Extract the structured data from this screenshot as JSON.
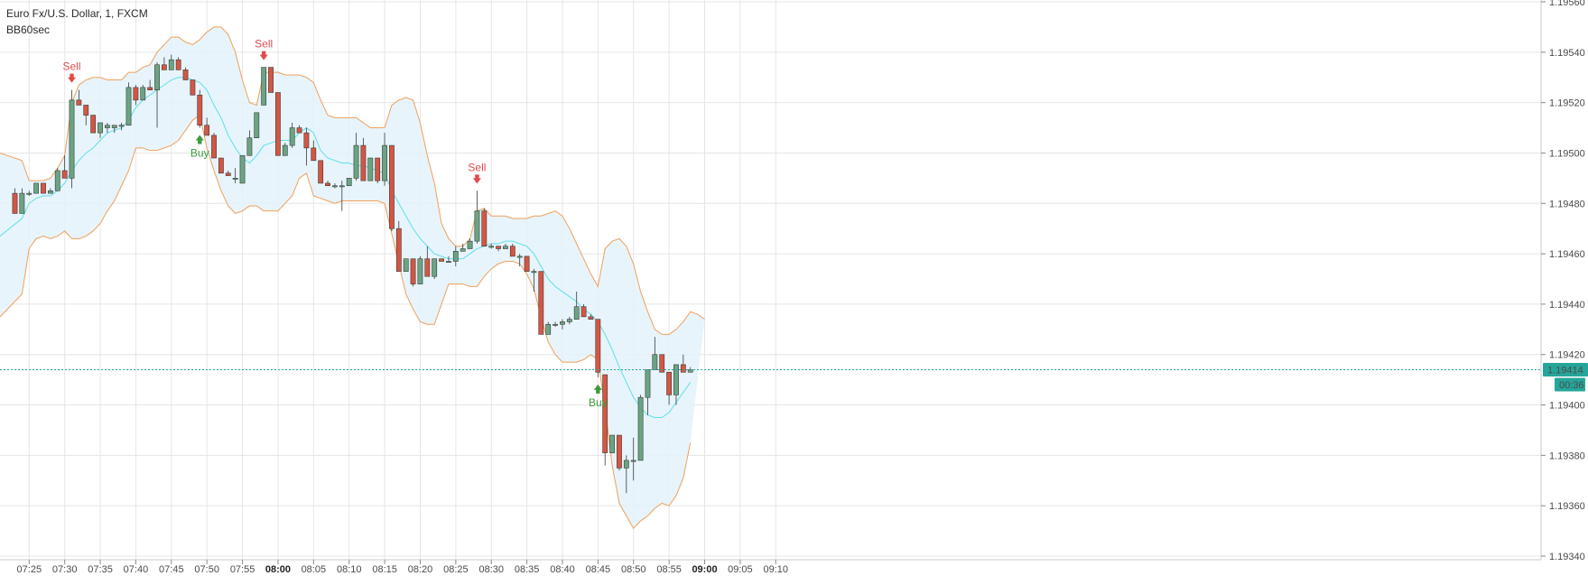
{
  "chart_title": "Euro Fx/U.S. Dollar, 1, FXCM",
  "indicator_label": "BB60sec",
  "chart_data": {
    "type": "candlestick",
    "y_axis": {
      "range": [
        1.1934,
        1.1956
      ],
      "ticks": [
        "1.19340",
        "1.19360",
        "1.19380",
        "1.19400",
        "1.19420",
        "1.19440",
        "1.19460",
        "1.19480",
        "1.19500",
        "1.19520",
        "1.19540",
        "1.19560"
      ]
    },
    "x_axis": {
      "tick_labels": [
        "07:25",
        "07:30",
        "07:35",
        "07:40",
        "07:45",
        "07:50",
        "07:55",
        "08:00",
        "08:05",
        "08:10",
        "08:15",
        "08:20",
        "08:25",
        "08:30",
        "08:35",
        "08:40",
        "08:45",
        "08:50",
        "08:55",
        "09:00",
        "09:05",
        "09:10"
      ],
      "bold_labels": [
        "08:00",
        "09:00"
      ]
    },
    "current_price": "1.19414",
    "countdown": "00:36",
    "colors": {
      "up": "#6aa583",
      "down": "#d55643",
      "band": "#f0a05a",
      "band_fill": "#e3f2fa",
      "basis": "#5ee0e8",
      "sell": "#e24b4b",
      "buy": "#3b9a3b",
      "price_label": "#26a69a"
    },
    "candles": [
      [
        1.19484,
        1.19486,
        1.19476,
        1.19476
      ],
      [
        1.19476,
        1.19486,
        1.19476,
        1.19484
      ],
      [
        1.19484,
        1.19485,
        1.19483,
        1.19484
      ],
      [
        1.19484,
        1.19488,
        1.19484,
        1.19488
      ],
      [
        1.19488,
        1.19488,
        1.19484,
        1.19484
      ],
      [
        1.19484,
        1.19486,
        1.19484,
        1.19485
      ],
      [
        1.19485,
        1.19494,
        1.19485,
        1.19493
      ],
      [
        1.19493,
        1.19499,
        1.1949,
        1.1949
      ],
      [
        1.1949,
        1.19525,
        1.19486,
        1.19521
      ],
      [
        1.19521,
        1.19525,
        1.19519,
        1.19519
      ],
      [
        1.19519,
        1.19519,
        1.19511,
        1.19515
      ],
      [
        1.19515,
        1.19515,
        1.19508,
        1.19508
      ],
      [
        1.19508,
        1.19512,
        1.19506,
        1.19512
      ],
      [
        1.1951,
        1.19512,
        1.19508,
        1.19511
      ],
      [
        1.1951,
        1.19511,
        1.19508,
        1.19511
      ],
      [
        1.19511,
        1.19512,
        1.19509,
        1.19511
      ],
      [
        1.19511,
        1.19528,
        1.19511,
        1.19526
      ],
      [
        1.19526,
        1.19527,
        1.19519,
        1.19521
      ],
      [
        1.19521,
        1.19527,
        1.19521,
        1.19526
      ],
      [
        1.19526,
        1.19529,
        1.19525,
        1.19525
      ],
      [
        1.19525,
        1.19536,
        1.1951,
        1.19535
      ],
      [
        1.19535,
        1.19538,
        1.19533,
        1.19533
      ],
      [
        1.19533,
        1.19539,
        1.19533,
        1.19537
      ],
      [
        1.19537,
        1.19538,
        1.19533,
        1.19533
      ],
      [
        1.19533,
        1.19534,
        1.19529,
        1.19529
      ],
      [
        1.19529,
        1.19529,
        1.19523,
        1.19523
      ],
      [
        1.19523,
        1.19525,
        1.1951,
        1.19511
      ],
      [
        1.19511,
        1.19514,
        1.19507,
        1.19507
      ],
      [
        1.19507,
        1.19508,
        1.19498,
        1.19498
      ],
      [
        1.19498,
        1.19498,
        1.19492,
        1.19492
      ],
      [
        1.19492,
        1.19493,
        1.19491,
        1.19491
      ],
      [
        1.1949,
        1.19494,
        1.19488,
        1.1949
      ],
      [
        1.19488,
        1.19499,
        1.19488,
        1.19499
      ],
      [
        1.19499,
        1.19509,
        1.19499,
        1.19506
      ],
      [
        1.19506,
        1.19516,
        1.19506,
        1.19516
      ],
      [
        1.19519,
        1.19534,
        1.19519,
        1.19534
      ],
      [
        1.19534,
        1.19534,
        1.19524,
        1.19524
      ],
      [
        1.19524,
        1.19524,
        1.19499,
        1.19499
      ],
      [
        1.19499,
        1.19504,
        1.19499,
        1.19503
      ],
      [
        1.19503,
        1.19512,
        1.19502,
        1.1951
      ],
      [
        1.1951,
        1.19511,
        1.19508,
        1.19508
      ],
      [
        1.19508,
        1.1951,
        1.19495,
        1.19502
      ],
      [
        1.19502,
        1.19505,
        1.19497,
        1.19497
      ],
      [
        1.19497,
        1.19497,
        1.19488,
        1.19488
      ],
      [
        1.19488,
        1.19489,
        1.19487,
        1.19487
      ],
      [
        1.19487,
        1.19488,
        1.19486,
        1.19487
      ],
      [
        1.19487,
        1.19489,
        1.19477,
        1.19487
      ],
      [
        1.19487,
        1.1949,
        1.19487,
        1.1949
      ],
      [
        1.1949,
        1.19508,
        1.19489,
        1.19503
      ],
      [
        1.19503,
        1.19506,
        1.19489,
        1.19489
      ],
      [
        1.19489,
        1.19498,
        1.19489,
        1.19498
      ],
      [
        1.19498,
        1.19498,
        1.19488,
        1.19489
      ],
      [
        1.19489,
        1.19508,
        1.19487,
        1.19503
      ],
      [
        1.19503,
        1.19503,
        1.19469,
        1.1947
      ],
      [
        1.1947,
        1.19473,
        1.19453,
        1.19453
      ],
      [
        1.19453,
        1.19458,
        1.19453,
        1.19458
      ],
      [
        1.19458,
        1.19458,
        1.19447,
        1.19448
      ],
      [
        1.19448,
        1.19459,
        1.19448,
        1.19458
      ],
      [
        1.19458,
        1.19463,
        1.19451,
        1.19451
      ],
      [
        1.19451,
        1.19458,
        1.1945,
        1.19458
      ],
      [
        1.19458,
        1.19458,
        1.19457,
        1.19457
      ],
      [
        1.19457,
        1.19459,
        1.19457,
        1.19457
      ],
      [
        1.19457,
        1.19463,
        1.19455,
        1.19461
      ],
      [
        1.19461,
        1.19464,
        1.19461,
        1.19462
      ],
      [
        1.19462,
        1.19466,
        1.19462,
        1.19465
      ],
      [
        1.19465,
        1.19485,
        1.19464,
        1.19477
      ],
      [
        1.19477,
        1.19478,
        1.19463,
        1.19463
      ],
      [
        1.19463,
        1.19464,
        1.19462,
        1.19463
      ],
      [
        1.19463,
        1.19463,
        1.19461,
        1.19462
      ],
      [
        1.19462,
        1.19464,
        1.19462,
        1.19463
      ],
      [
        1.19463,
        1.19464,
        1.19459,
        1.19459
      ],
      [
        1.19459,
        1.1946,
        1.19455,
        1.19459
      ],
      [
        1.19459,
        1.19459,
        1.19453,
        1.19453
      ],
      [
        1.19453,
        1.19454,
        1.19445,
        1.19453
      ],
      [
        1.19453,
        1.19453,
        1.19428,
        1.19428
      ],
      [
        1.19428,
        1.19433,
        1.19428,
        1.19432
      ],
      [
        1.19432,
        1.19433,
        1.19431,
        1.19432
      ],
      [
        1.19432,
        1.19434,
        1.1943,
        1.19433
      ],
      [
        1.19433,
        1.19435,
        1.19432,
        1.19434
      ],
      [
        1.19434,
        1.19445,
        1.19434,
        1.19439
      ],
      [
        1.19439,
        1.1944,
        1.19435,
        1.19435
      ],
      [
        1.19435,
        1.19436,
        1.19434,
        1.19434
      ],
      [
        1.19434,
        1.19434,
        1.19411,
        1.19413
      ],
      [
        1.19412,
        1.19412,
        1.19376,
        1.19381
      ],
      [
        1.19381,
        1.19388,
        1.19381,
        1.19388
      ],
      [
        1.19388,
        1.19388,
        1.19374,
        1.19375
      ],
      [
        1.19375,
        1.1938,
        1.19365,
        1.19378
      ],
      [
        1.19378,
        1.19387,
        1.1937,
        1.19378
      ],
      [
        1.19378,
        1.19404,
        1.19378,
        1.19403
      ],
      [
        1.19403,
        1.19414,
        1.19396,
        1.19414
      ],
      [
        1.19414,
        1.19427,
        1.19414,
        1.1942
      ],
      [
        1.1942,
        1.1942,
        1.19413,
        1.19413
      ],
      [
        1.19413,
        1.19413,
        1.194,
        1.19404
      ],
      [
        1.19404,
        1.19416,
        1.194,
        1.19416
      ],
      [
        1.19416,
        1.1942,
        1.19413,
        1.19413
      ],
      [
        1.19413,
        1.19415,
        1.19413,
        1.19414
      ]
    ],
    "upper_band": [
      1.195,
      1.19497,
      1.19489,
      1.19489,
      1.19489,
      1.1949,
      1.19494,
      1.19499,
      1.1952,
      1.19527,
      1.19529,
      1.1953,
      1.1953,
      1.19529,
      1.19529,
      1.19529,
      1.19532,
      1.19532,
      1.19534,
      1.19535,
      1.1954,
      1.19543,
      1.19546,
      1.19546,
      1.19544,
      1.19543,
      1.19545,
      1.19548,
      1.1955,
      1.1955,
      1.19547,
      1.1954,
      1.19529,
      1.1952,
      1.19519,
      1.19532,
      1.19532,
      1.19532,
      1.19531,
      1.19531,
      1.19531,
      1.1953,
      1.19528,
      1.19521,
      1.19515,
      1.19514,
      1.19514,
      1.19514,
      1.19514,
      1.19512,
      1.1951,
      1.1951,
      1.1951,
      1.19519,
      1.19521,
      1.19522,
      1.19521,
      1.19512,
      1.19499,
      1.19488,
      1.19472,
      1.19466,
      1.19463,
      1.19463,
      1.19466,
      1.19477,
      1.19478,
      1.19475,
      1.19475,
      1.19475,
      1.19474,
      1.19474,
      1.19474,
      1.19475,
      1.19475,
      1.19476,
      1.19477,
      1.19475,
      1.1947,
      1.19464,
      1.19458,
      1.19452,
      1.19447,
      1.19462,
      1.19465,
      1.19466,
      1.19463,
      1.19456,
      1.19445,
      1.19437,
      1.1943,
      1.19428,
      1.19428,
      1.1943,
      1.19433,
      1.19437,
      1.19436,
      1.19434
    ],
    "lower_band": [
      1.19435,
      1.19444,
      1.19462,
      1.19466,
      1.19467,
      1.19466,
      1.19467,
      1.19469,
      1.19466,
      1.19466,
      1.19467,
      1.19469,
      1.19472,
      1.19477,
      1.19481,
      1.19487,
      1.19493,
      1.19502,
      1.19502,
      1.19501,
      1.19501,
      1.19502,
      1.19503,
      1.19505,
      1.19509,
      1.19513,
      1.19515,
      1.19502,
      1.19493,
      1.19485,
      1.19479,
      1.19476,
      1.19477,
      1.19479,
      1.19479,
      1.19477,
      1.19477,
      1.19477,
      1.1948,
      1.19483,
      1.1949,
      1.19492,
      1.19483,
      1.19482,
      1.19481,
      1.1948,
      1.19481,
      1.19481,
      1.19481,
      1.19481,
      1.19481,
      1.19481,
      1.1948,
      1.19468,
      1.19456,
      1.19444,
      1.19438,
      1.19433,
      1.19432,
      1.19432,
      1.1944,
      1.19448,
      1.19448,
      1.19448,
      1.19447,
      1.19447,
      1.19451,
      1.19454,
      1.19456,
      1.19457,
      1.19457,
      1.19456,
      1.19452,
      1.19446,
      1.19435,
      1.19425,
      1.1942,
      1.19417,
      1.19417,
      1.19417,
      1.19418,
      1.1942,
      1.19418,
      1.19399,
      1.19376,
      1.19361,
      1.19356,
      1.19351,
      1.19354,
      1.19356,
      1.19359,
      1.19361,
      1.1936,
      1.19364,
      1.19371,
      1.19385
    ],
    "basis": [
      1.19467,
      1.19474,
      1.1948,
      1.19482,
      1.19483,
      1.19483,
      1.19485,
      1.19488,
      1.19493,
      1.19497,
      1.195,
      1.19502,
      1.19505,
      1.19508,
      1.19509,
      1.1951,
      1.19513,
      1.19518,
      1.19521,
      1.19523,
      1.19525,
      1.19527,
      1.19529,
      1.1953,
      1.1953,
      1.19529,
      1.19528,
      1.19525,
      1.19519,
      1.19514,
      1.19507,
      1.19502,
      1.19498,
      1.19496,
      1.19499,
      1.19503,
      1.19504,
      1.19505,
      1.19505,
      1.19505,
      1.19508,
      1.1951,
      1.19508,
      1.19501,
      1.19498,
      1.19497,
      1.19496,
      1.19496,
      1.19495,
      1.19495,
      1.19494,
      1.19493,
      1.19492,
      1.19485,
      1.1948,
      1.19475,
      1.1947,
      1.19466,
      1.19463,
      1.1946,
      1.19459,
      1.19458,
      1.19458,
      1.19458,
      1.1946,
      1.19462,
      1.19463,
      1.19464,
      1.19464,
      1.19465,
      1.19465,
      1.19464,
      1.19463,
      1.1946,
      1.19455,
      1.1945,
      1.19447,
      1.19445,
      1.19443,
      1.19441,
      1.19438,
      1.19436,
      1.19433,
      1.19428,
      1.19422,
      1.19415,
      1.19409,
      1.19403,
      1.19399,
      1.19396,
      1.19395,
      1.19395,
      1.19397,
      1.19401,
      1.19405,
      1.19409
    ],
    "signals": [
      {
        "index": 8,
        "type": "sell",
        "label": "Sell"
      },
      {
        "index": 26,
        "type": "buy",
        "label": "Buy"
      },
      {
        "index": 35,
        "type": "sell",
        "label": "Sell"
      },
      {
        "index": 65,
        "type": "sell",
        "label": "Sell"
      },
      {
        "index": 82,
        "type": "buy",
        "label": "Buy"
      }
    ]
  }
}
